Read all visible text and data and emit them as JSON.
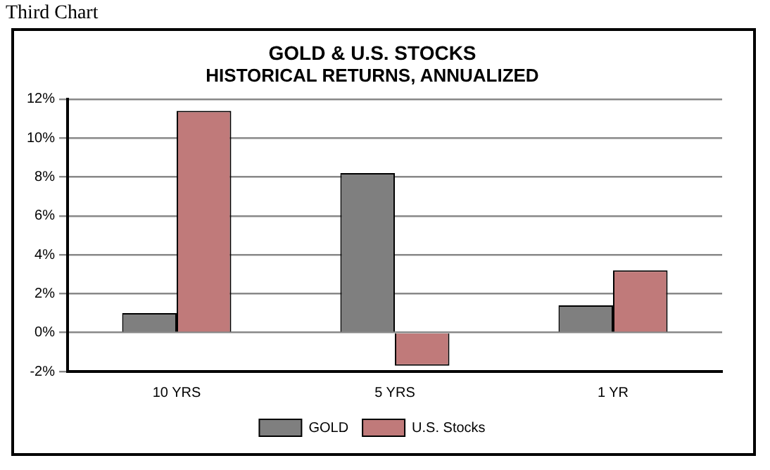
{
  "chart_data": {
    "type": "bar",
    "title": "GOLD & U.S. STOCKS",
    "subtitle": "HISTORICAL RETURNS, ANNUALIZED",
    "annotations": [
      "Third Chart"
    ],
    "categories": [
      "10 YRS",
      "5 YRS",
      "1 YR"
    ],
    "series": [
      {
        "name": "GOLD",
        "color": "#7f7f7f",
        "values": [
          1.0,
          8.2,
          1.4
        ]
      },
      {
        "name": "U.S. Stocks",
        "color": "#c07a7a",
        "values": [
          11.4,
          -1.7,
          3.2
        ]
      }
    ],
    "ylim": [
      -2,
      12
    ],
    "yticks": [
      {
        "value": -2,
        "label": "-2%"
      },
      {
        "value": 0,
        "label": "0%"
      },
      {
        "value": 2,
        "label": "2%"
      },
      {
        "value": 4,
        "label": "4%"
      },
      {
        "value": 6,
        "label": "6%"
      },
      {
        "value": 8,
        "label": "8%"
      },
      {
        "value": 10,
        "label": "10%"
      },
      {
        "value": 12,
        "label": "12%"
      }
    ],
    "grid": "y",
    "legend": "bottom"
  }
}
